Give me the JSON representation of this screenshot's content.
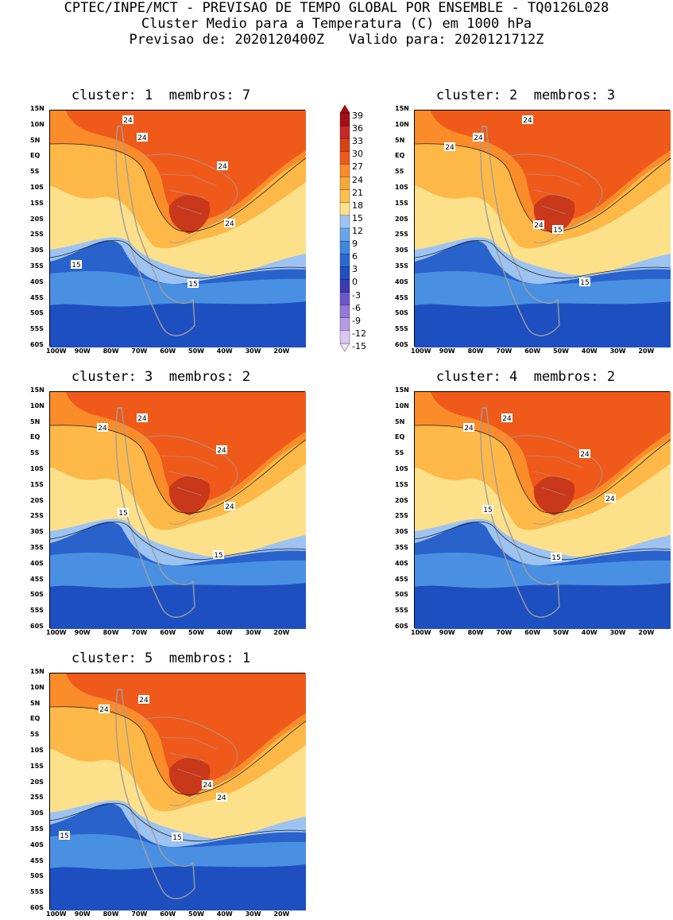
{
  "header": {
    "line1": "CPTEC/INPE/MCT - PREVISAO DE TEMPO GLOBAL POR ENSEMBLE - TQ0126L028",
    "line2": "Cluster Medio para a Temperatura (C) em 1000 hPa",
    "line3": "Previsao de: 2020120400Z   Valido para: 2020121712Z"
  },
  "panels": [
    {
      "title": "cluster: 1  membros: 7",
      "labels": [
        "24",
        "24",
        "24",
        "24",
        "15",
        "15"
      ]
    },
    {
      "title": "cluster: 2  membros: 3",
      "labels": [
        "24",
        "24",
        "24",
        "24",
        "15",
        "15"
      ]
    },
    {
      "title": "cluster: 3  membros: 2",
      "labels": [
        "24",
        "24",
        "24",
        "24",
        "15",
        "15"
      ]
    },
    {
      "title": "cluster: 4  membros: 2",
      "labels": [
        "24",
        "24",
        "24",
        "24",
        "15",
        "15"
      ]
    },
    {
      "title": "cluster: 5  membros: 1",
      "labels": [
        "24",
        "24",
        "24",
        "24",
        "15",
        "15"
      ]
    }
  ],
  "axes": {
    "lat_labels": [
      "15N",
      "10N",
      "5N",
      "EQ",
      "5S",
      "10S",
      "15S",
      "20S",
      "25S",
      "30S",
      "35S",
      "40S",
      "45S",
      "50S",
      "55S",
      "60S"
    ],
    "lon_labels": [
      "100W",
      "90W",
      "80W",
      "70W",
      "60W",
      "50W",
      "40W",
      "30W",
      "20W"
    ]
  },
  "colorbar": {
    "labels": [
      "39",
      "36",
      "33",
      "30",
      "27",
      "24",
      "21",
      "18",
      "15",
      "12",
      "9",
      "6",
      "3",
      "0",
      "-3",
      "-6",
      "-9",
      "-12",
      "-15"
    ],
    "colors": [
      "#a50f15",
      "#c62828",
      "#d84315",
      "#ef5a1a",
      "#fb8c2a",
      "#f9a93a",
      "#fdc24c",
      "#fde08a",
      "#9cc3f2",
      "#6aa5ec",
      "#3f86e0",
      "#2a6ad0",
      "#1f51c2",
      "#3a3bb0",
      "#6b58c8",
      "#9479d6",
      "#b59ce2",
      "#d8c8f0"
    ]
  },
  "colors": {
    "hot": "#c9381a",
    "warm": "#ef5a1a",
    "orange": "#fb8c2a",
    "light_orange": "#fdb847",
    "yellow": "#fde08a",
    "light_blue": "#9cc3f2",
    "blue": "#4a90e2",
    "dark_blue": "#2a62cc",
    "navy": "#1e4fc0",
    "land_border": "#9e9e9e"
  }
}
